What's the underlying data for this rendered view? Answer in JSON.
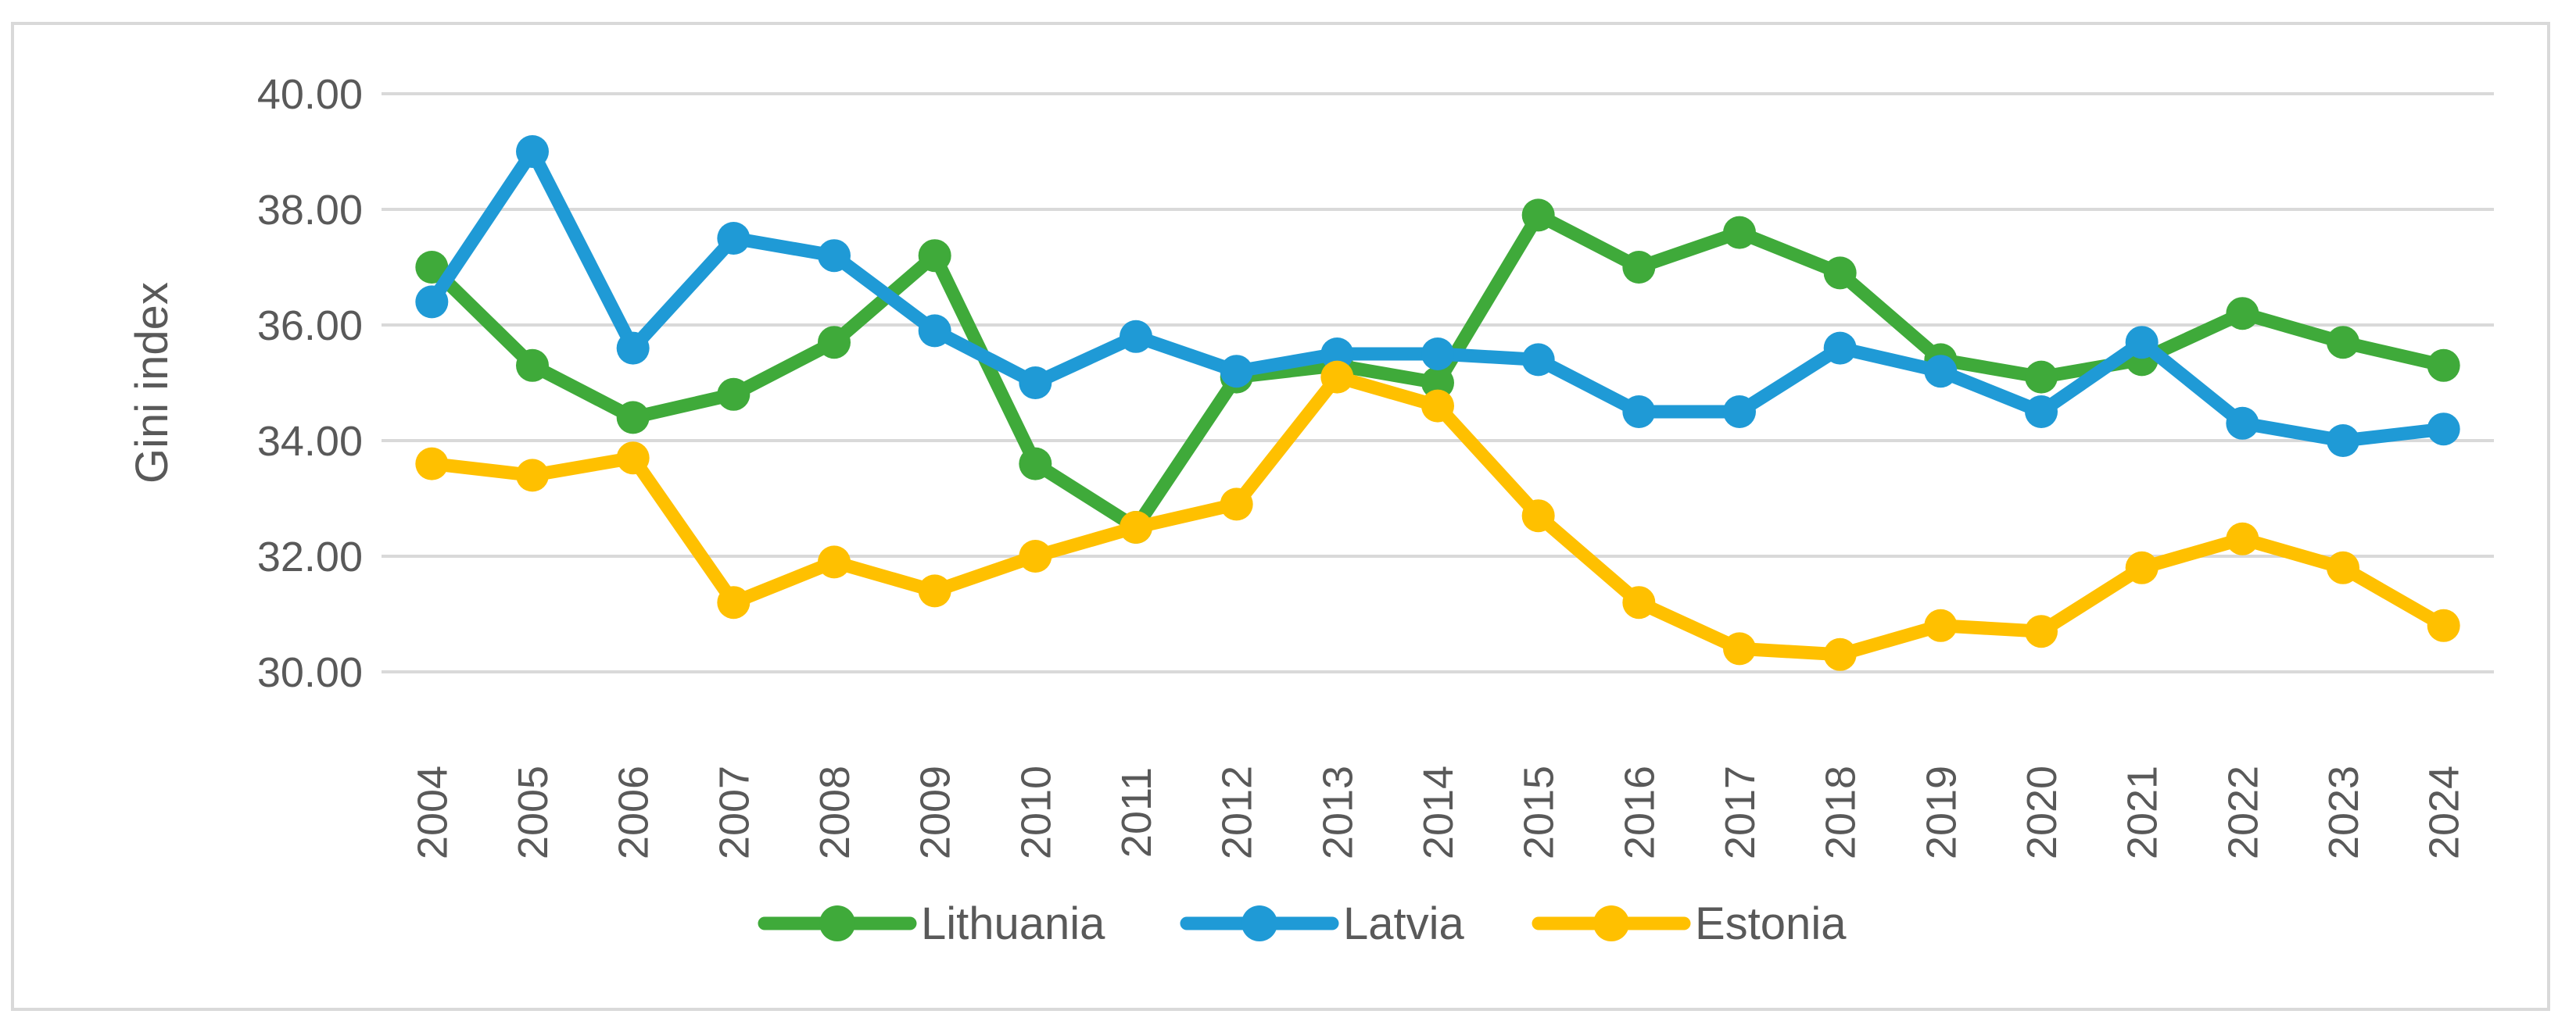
{
  "chart_data": {
    "type": "line",
    "title": "",
    "xlabel": "",
    "ylabel": "Gini index",
    "ylim": [
      30,
      40
    ],
    "ytick_step": 2,
    "ytick_decimals": 2,
    "grid": "horizontal",
    "legend_position": "bottom",
    "categories": [
      "2004",
      "2005",
      "2006",
      "2007",
      "2008",
      "2009",
      "2010",
      "2011",
      "2012",
      "2013",
      "2014",
      "2015",
      "2016",
      "2017",
      "2018",
      "2019",
      "2020",
      "2021",
      "2022",
      "2023",
      "2024"
    ],
    "series": [
      {
        "name": "Lithuania",
        "color": "#3faa3a",
        "values": [
          37.0,
          35.3,
          34.4,
          34.8,
          35.7,
          37.2,
          33.6,
          32.5,
          35.1,
          35.3,
          35.0,
          37.9,
          37.0,
          37.6,
          36.9,
          35.4,
          35.1,
          35.4,
          36.2,
          35.7,
          35.3
        ]
      },
      {
        "name": "Latvia",
        "color": "#1f9ad6",
        "values": [
          36.4,
          39.0,
          35.6,
          37.5,
          37.2,
          35.9,
          35.0,
          35.8,
          35.2,
          35.5,
          35.5,
          35.4,
          34.5,
          34.5,
          35.6,
          35.2,
          34.5,
          35.7,
          34.3,
          34.0,
          34.2
        ]
      },
      {
        "name": "Estonia",
        "color": "#ffc000",
        "values": [
          33.6,
          33.4,
          33.7,
          31.2,
          31.9,
          31.4,
          32.0,
          32.5,
          32.9,
          35.1,
          34.6,
          32.7,
          31.2,
          30.4,
          30.3,
          30.8,
          30.7,
          31.8,
          32.3,
          31.8,
          30.8
        ]
      }
    ]
  }
}
